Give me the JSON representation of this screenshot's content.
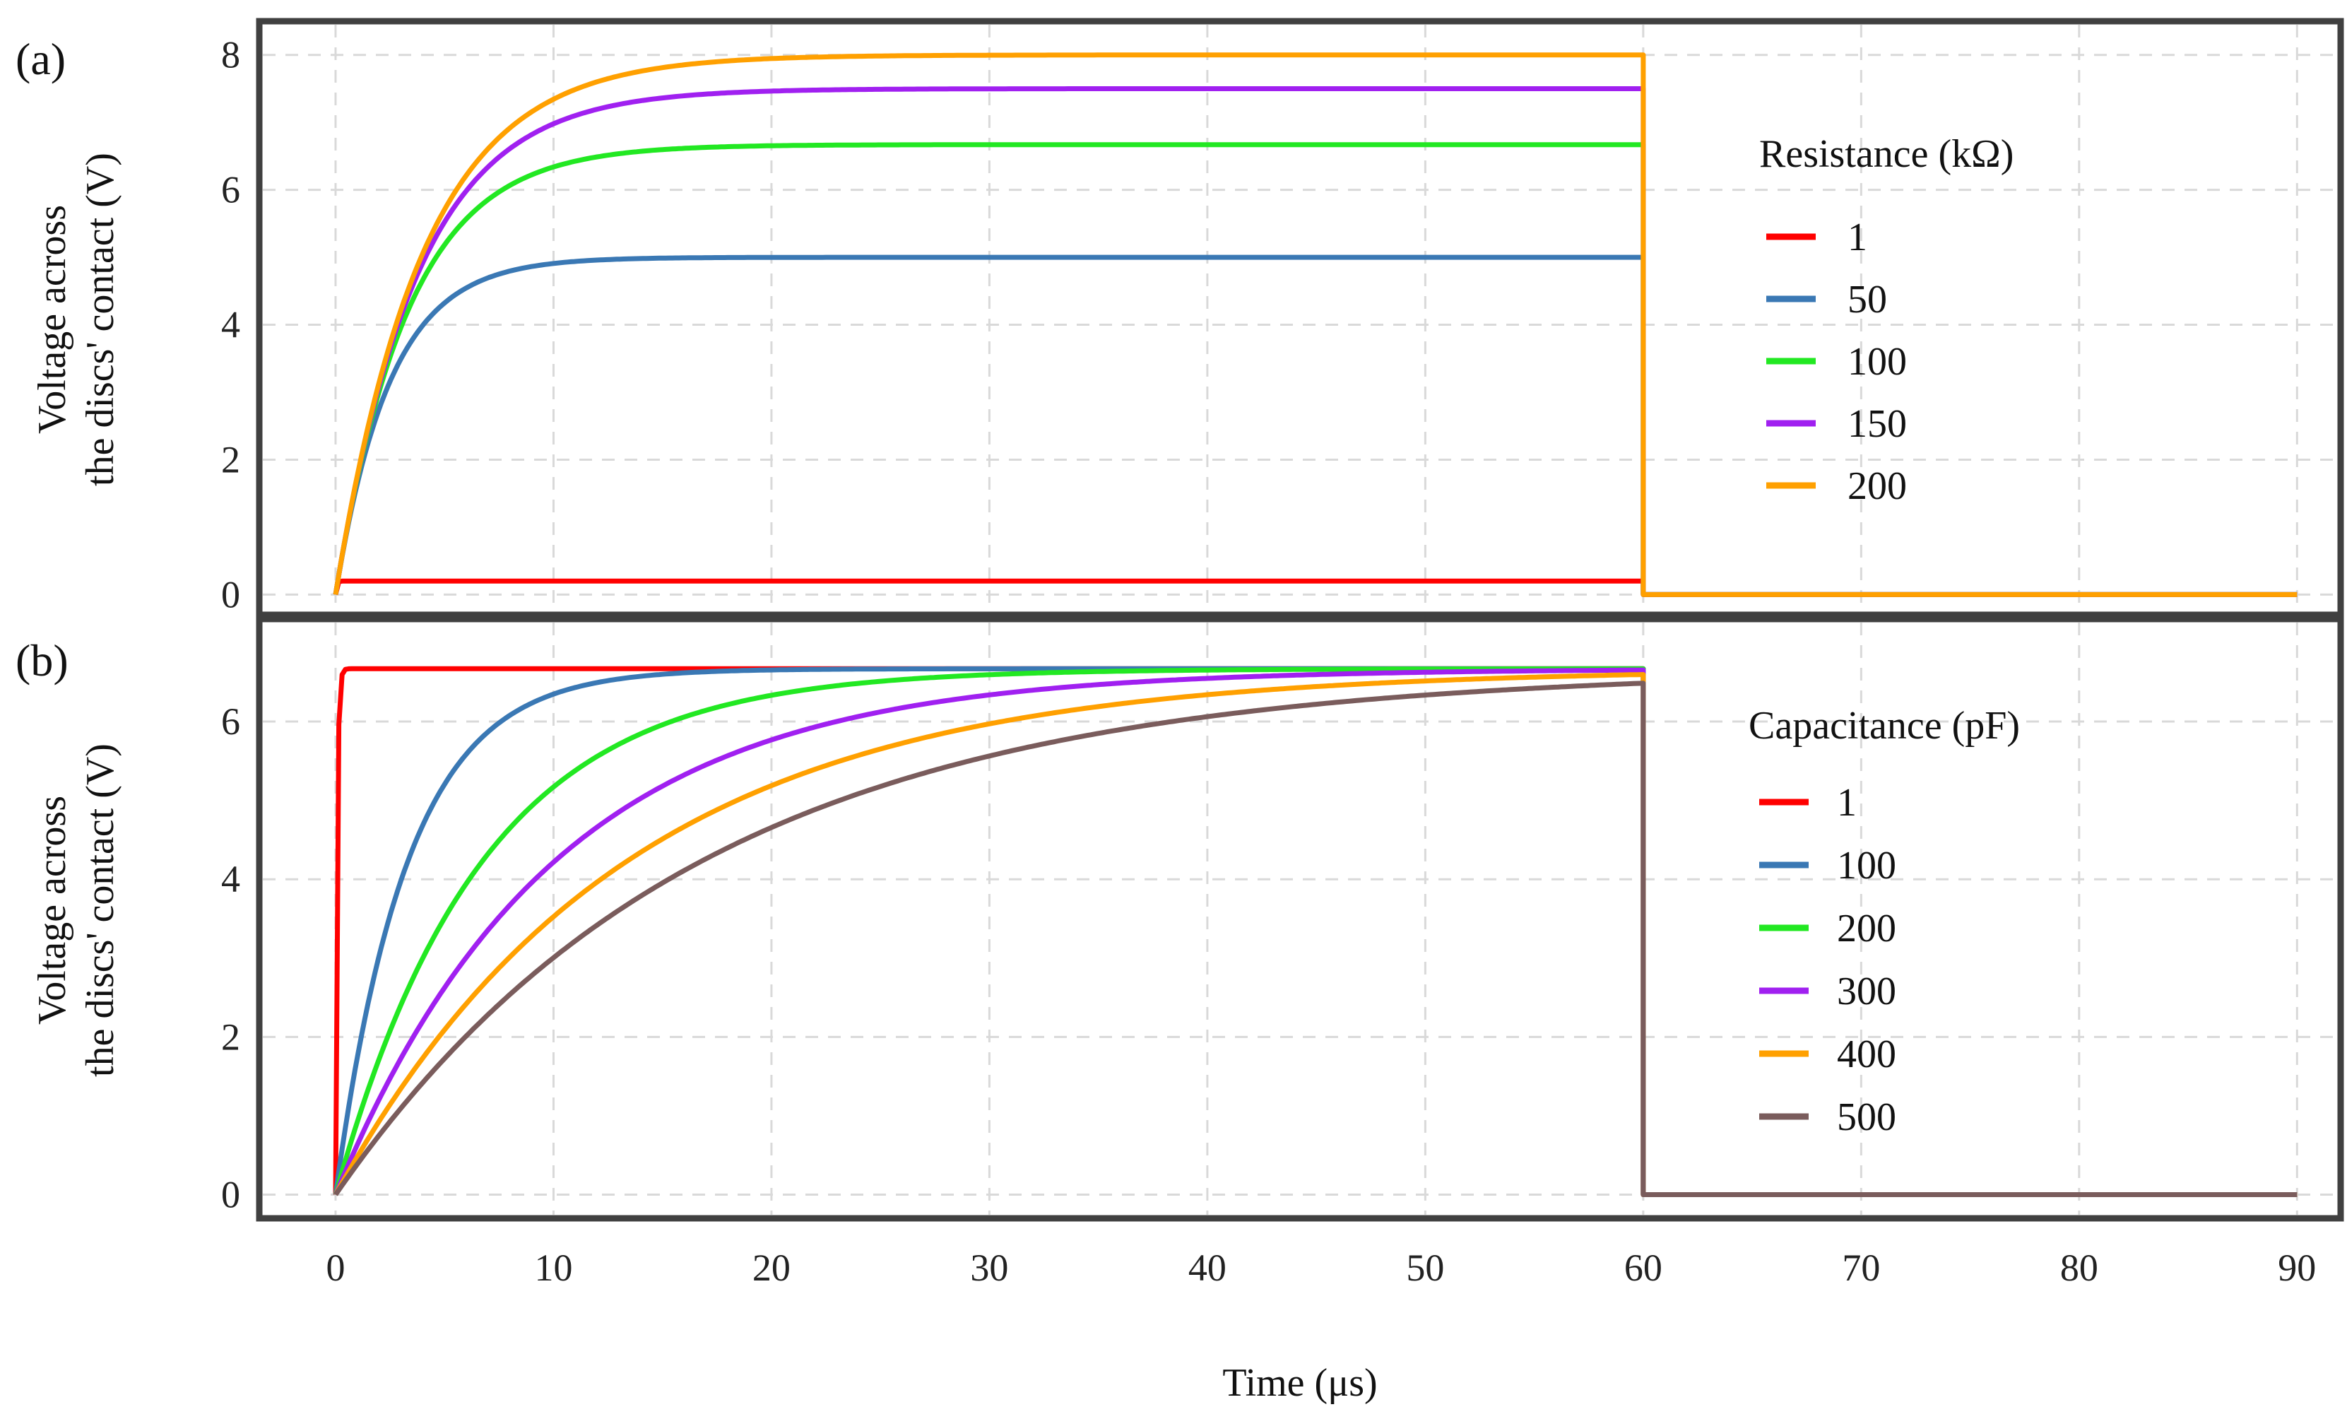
{
  "figure": {
    "xlabel": "Time (μs)",
    "x_ticks": [
      "0",
      "10",
      "20",
      "30",
      "40",
      "50",
      "60",
      "70",
      "80",
      "90"
    ]
  },
  "chart_data": [
    {
      "type": "line",
      "panel_label": "(a)",
      "ylabel_line1": "Voltage across",
      "ylabel_line2": "the discs' contact (V)",
      "xlabel": "Time (μs)",
      "xlim": [
        -3.5,
        92
      ],
      "ylim": [
        -0.3,
        8.5
      ],
      "y_ticks": [
        "0",
        "2",
        "4",
        "6",
        "8"
      ],
      "legend_title": "Resistance (kΩ)",
      "legend_position": "right",
      "pulse_end": 60,
      "x_end": 90,
      "series": [
        {
          "name": "1",
          "color": "#ff0000",
          "steady_v": 0.2,
          "tau_us": 0.05
        },
        {
          "name": "50",
          "color": "#3a78b4",
          "steady_v": 5.0,
          "tau_us": 2.5
        },
        {
          "name": "100",
          "color": "#22e822",
          "steady_v": 6.67,
          "tau_us": 3.33
        },
        {
          "name": "150",
          "color": "#a020f0",
          "steady_v": 7.5,
          "tau_us": 3.75
        },
        {
          "name": "200",
          "color": "#ffa000",
          "steady_v": 8.0,
          "tau_us": 4.0
        }
      ]
    },
    {
      "type": "line",
      "panel_label": "(b)",
      "ylabel_line1": "Voltage across",
      "ylabel_line2": "the discs' contact (V)",
      "xlabel": "Time (μs)",
      "xlim": [
        -3.5,
        92
      ],
      "ylim": [
        -0.3,
        7.3
      ],
      "y_ticks": [
        "0",
        "2",
        "4",
        "6"
      ],
      "legend_title": "Capacitance (pF)",
      "legend_position": "right",
      "pulse_end": 60,
      "x_end": 90,
      "series": [
        {
          "name": "1",
          "color": "#ff0000",
          "steady_v": 6.67,
          "tau_us": 0.067
        },
        {
          "name": "100",
          "color": "#3a78b4",
          "steady_v": 6.67,
          "tau_us": 3.3
        },
        {
          "name": "200",
          "color": "#22e822",
          "steady_v": 6.67,
          "tau_us": 6.7
        },
        {
          "name": "300",
          "color": "#a020f0",
          "steady_v": 6.67,
          "tau_us": 10.0
        },
        {
          "name": "400",
          "color": "#ffa000",
          "steady_v": 6.67,
          "tau_us": 13.3
        },
        {
          "name": "500",
          "color": "#7a5c5c",
          "steady_v": 6.67,
          "tau_us": 16.7
        }
      ]
    }
  ]
}
